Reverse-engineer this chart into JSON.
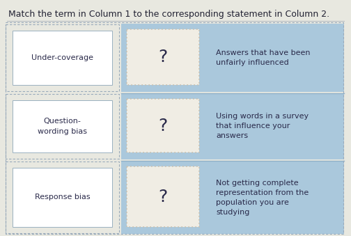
{
  "title": "Match the term in Column 1 to the corresponding statement in Column 2.",
  "title_fontsize": 9.0,
  "bg_color": "#e8e8e0",
  "left_area_bg": "#e8e8e0",
  "blue_col_bg": "#aac8dc",
  "white_box_color": "#f5f5ee",
  "term_box_color": "#ffffff",
  "term_box_edge": "#9ab0c0",
  "qmark_box_color": "#f0ede4",
  "qmark_box_edge": "#ccccbb",
  "terms": [
    "Under-coverage",
    "Question-\nwording bias",
    "Response bias"
  ],
  "descriptions": [
    "Answers that have been\nunfairly influenced",
    "Using words in a survey\nthat influence your\nanswers",
    "Not getting complete\nrepresentation from the\npopulation you are\nstudying"
  ],
  "question_mark": "?",
  "term_fontsize": 8.0,
  "desc_fontsize": 8.0,
  "qmark_fontsize": 18,
  "text_color": "#2a2a4a",
  "title_color": "#222233",
  "dashed_border_color": "#99aabb",
  "row_sep_color": "#8fb0c8"
}
